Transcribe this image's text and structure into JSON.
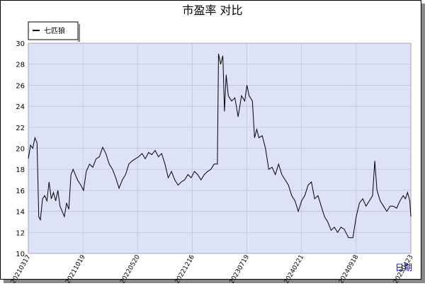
{
  "chart_data": {
    "type": "line",
    "title": "市盈率  对比",
    "x_label": "日期",
    "xlim": [
      0,
      700
    ],
    "ylim": [
      10,
      30
    ],
    "xticks": [
      {
        "value": 0,
        "label": "20210317"
      },
      {
        "value": 100,
        "label": "20211019"
      },
      {
        "value": 200,
        "label": "20220520"
      },
      {
        "value": 300,
        "label": "20221216"
      },
      {
        "value": 400,
        "label": "20230719"
      },
      {
        "value": 500,
        "label": "20240221"
      },
      {
        "value": 600,
        "label": "20240918"
      },
      {
        "value": 700,
        "label": "20250423"
      }
    ],
    "yticks": [
      10,
      12,
      14,
      16,
      18,
      20,
      22,
      24,
      26,
      28,
      30
    ],
    "grid": true,
    "legend": "top-left",
    "series": [
      {
        "name": "七匹狼",
        "color": "#000000",
        "x": [
          0,
          4,
          8,
          12,
          16,
          19,
          22,
          26,
          30,
          34,
          38,
          42,
          46,
          50,
          54,
          58,
          62,
          66,
          70,
          74,
          78,
          82,
          86,
          90,
          96,
          101,
          106,
          112,
          118,
          124,
          130,
          136,
          142,
          148,
          154,
          160,
          166,
          172,
          178,
          184,
          190,
          196,
          202,
          208,
          214,
          220,
          226,
          232,
          238,
          244,
          250,
          256,
          262,
          268,
          274,
          280,
          286,
          292,
          298,
          304,
          310,
          316,
          322,
          328,
          334,
          340,
          346,
          348,
          352,
          356,
          359,
          362,
          366,
          372,
          378,
          384,
          390,
          396,
          400,
          404,
          410,
          414,
          418,
          422,
          428,
          434,
          440,
          446,
          452,
          458,
          464,
          470,
          476,
          482,
          488,
          494,
          500,
          506,
          512,
          518,
          524,
          530,
          536,
          542,
          548,
          554,
          560,
          566,
          572,
          578,
          586,
          594,
          600,
          606,
          612,
          618,
          624,
          630,
          634,
          638,
          644,
          650,
          656,
          662,
          668,
          674,
          680,
          686,
          690,
          694,
          698,
          700
        ],
        "values": [
          19.0,
          20.3,
          20.0,
          21.0,
          20.5,
          13.5,
          13.2,
          15.2,
          15.5,
          15.0,
          16.8,
          15.2,
          15.8,
          15.0,
          16.0,
          14.5,
          14.0,
          13.5,
          14.8,
          14.2,
          17.5,
          18.0,
          17.5,
          17.0,
          16.5,
          16.0,
          17.8,
          18.5,
          18.2,
          19.0,
          19.2,
          20.1,
          19.5,
          18.5,
          18.0,
          17.2,
          16.2,
          17.0,
          17.5,
          18.5,
          18.8,
          19.0,
          19.2,
          19.5,
          19.0,
          19.6,
          19.4,
          19.8,
          19.2,
          19.5,
          18.5,
          17.2,
          17.8,
          17.0,
          16.5,
          16.8,
          17.0,
          17.5,
          17.2,
          17.8,
          17.5,
          17.0,
          17.5,
          17.8,
          18.0,
          18.5,
          18.5,
          29.0,
          28.0,
          28.8,
          23.5,
          27.0,
          25.0,
          24.5,
          24.8,
          23.0,
          25.0,
          24.5,
          26.0,
          25.0,
          24.5,
          21.0,
          21.8,
          21.0,
          21.2,
          20.0,
          18.0,
          18.2,
          17.5,
          18.5,
          17.5,
          17.0,
          16.5,
          15.5,
          15.0,
          14.0,
          15.0,
          15.5,
          16.5,
          16.8,
          15.2,
          15.5,
          14.5,
          13.5,
          13.0,
          12.2,
          12.5,
          12.0,
          12.5,
          12.3,
          11.5,
          11.5,
          13.5,
          14.8,
          15.2,
          14.5,
          15.0,
          15.5,
          18.8,
          16.0,
          15.0,
          14.5,
          14.0,
          14.5,
          14.5,
          14.3,
          15.0,
          15.5,
          15.2,
          15.8,
          15.0,
          13.5
        ]
      }
    ]
  }
}
